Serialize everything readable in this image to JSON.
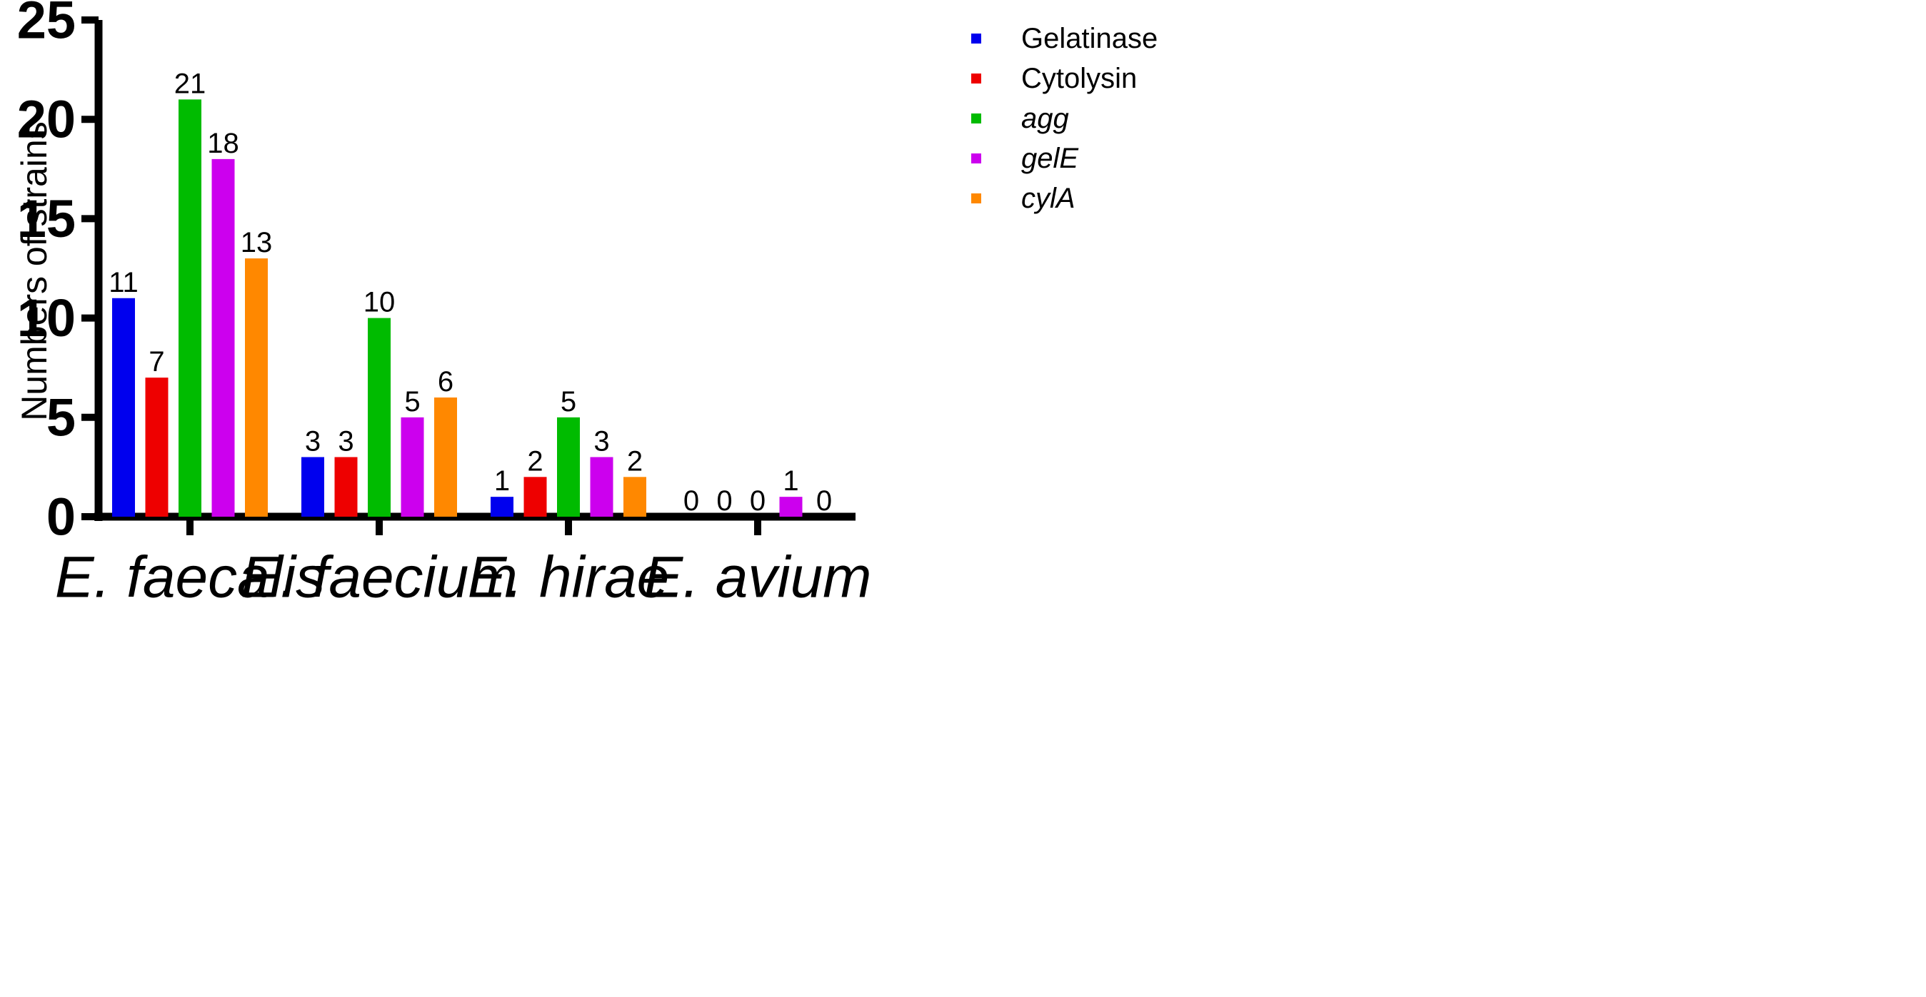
{
  "chart_data": {
    "type": "bar",
    "title": "",
    "xlabel": "",
    "ylabel": "Numbers of strains",
    "ylim": [
      0,
      25
    ],
    "yticks": [
      0,
      5,
      10,
      15,
      20,
      25
    ],
    "categories": [
      "E. faecalis",
      "E. faecium",
      "E. hirae",
      "E. avium"
    ],
    "legend_position": "top-right",
    "grid": false,
    "series": [
      {
        "name": "Gelatinase",
        "color": "#0000ee",
        "italic": false,
        "values": [
          11,
          3,
          1,
          0
        ]
      },
      {
        "name": "Cytolysin",
        "color": "#ee0000",
        "italic": false,
        "values": [
          7,
          3,
          2,
          0
        ]
      },
      {
        "name": "agg",
        "color": "#00bb00",
        "italic": true,
        "values": [
          21,
          10,
          5,
          0
        ]
      },
      {
        "name": "gelE",
        "color": "#cc00ee",
        "italic": true,
        "values": [
          18,
          5,
          3,
          1
        ]
      },
      {
        "name": "cylA",
        "color": "#ff8800",
        "italic": true,
        "values": [
          13,
          6,
          2,
          0
        ]
      }
    ]
  }
}
